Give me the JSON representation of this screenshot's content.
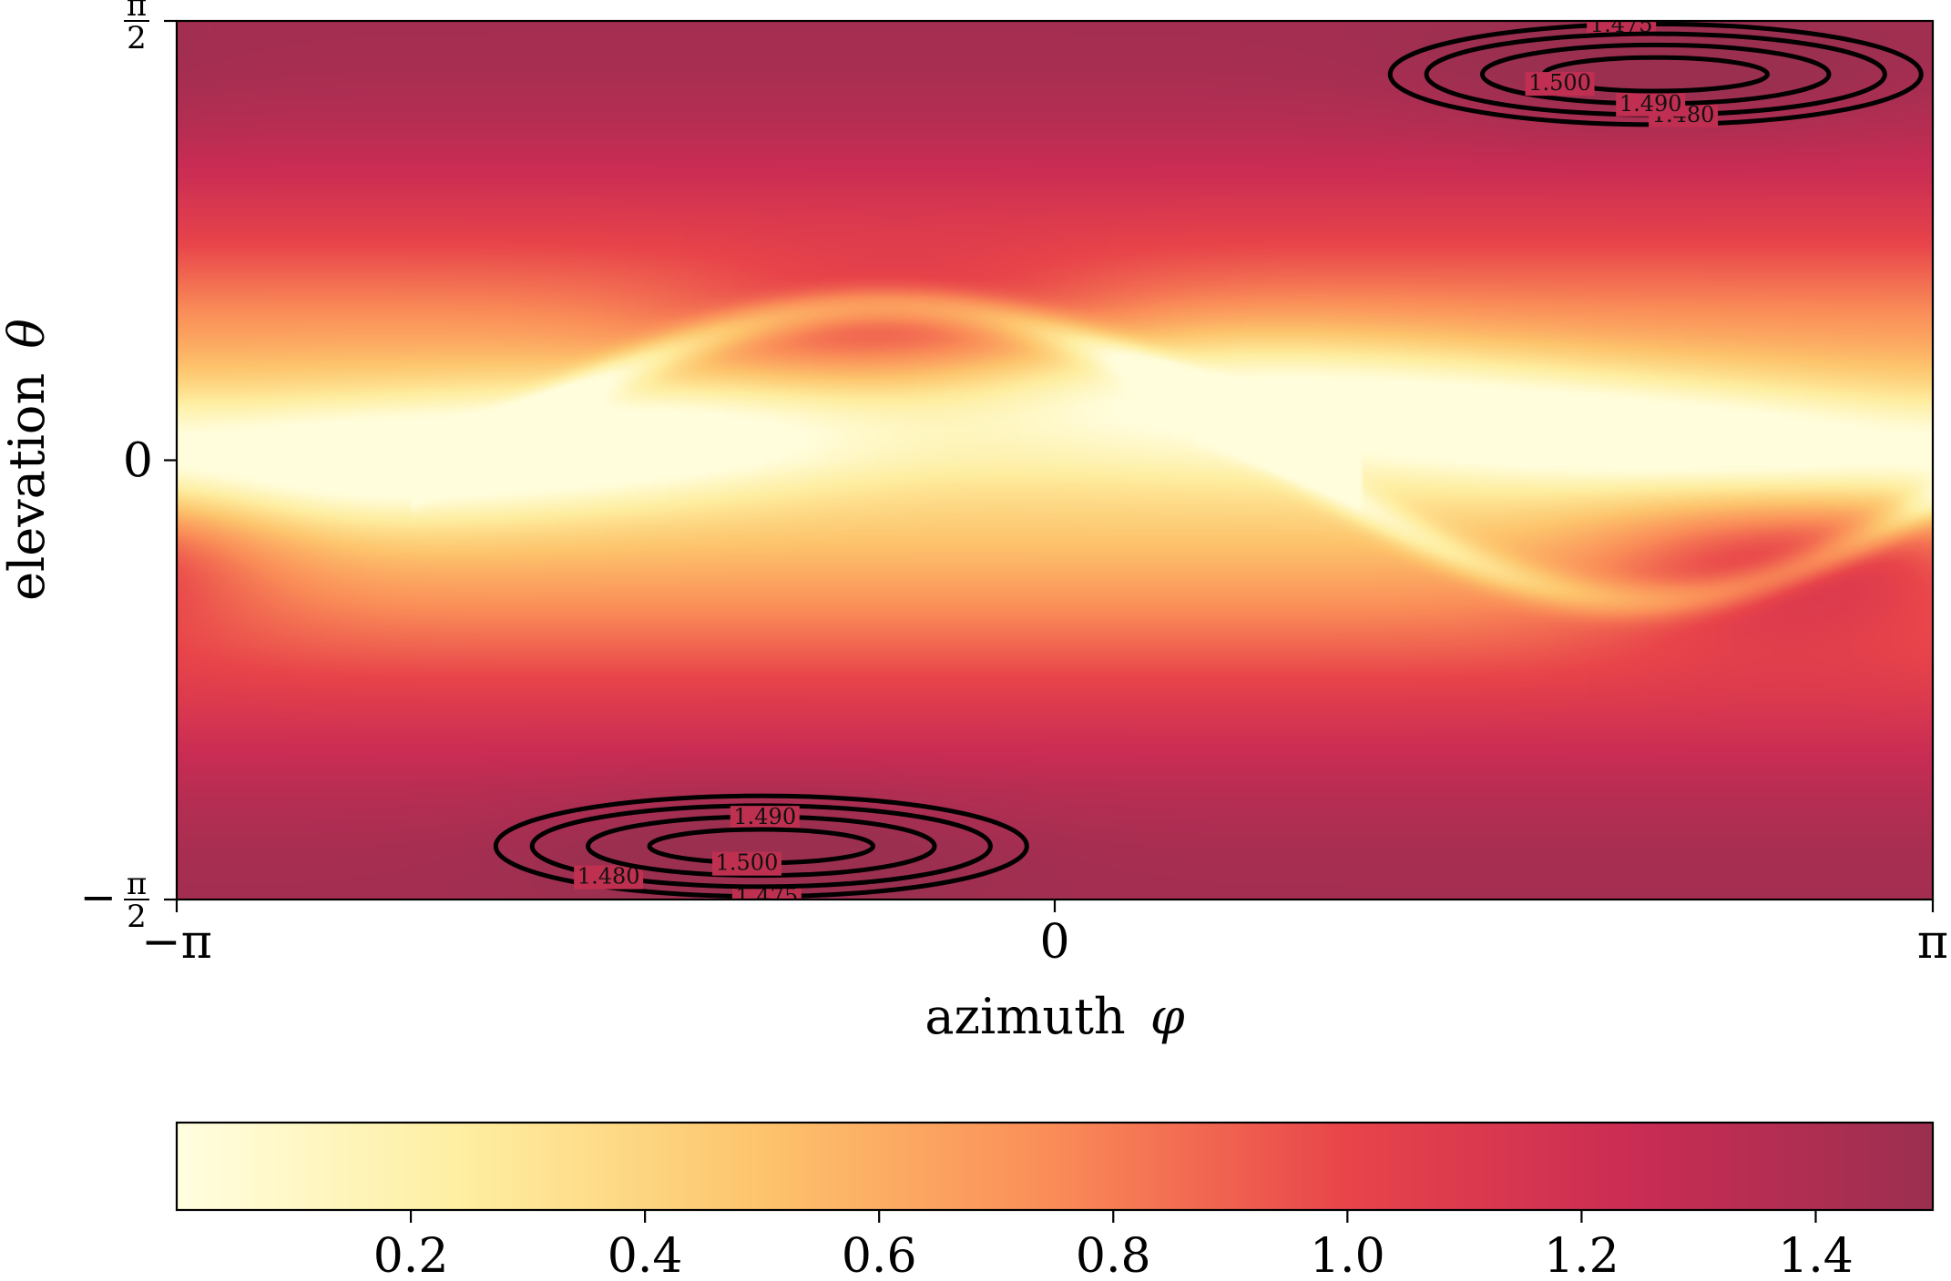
{
  "chart_data": {
    "type": "heatmap",
    "subtype": "heatmap-with-contours",
    "title": "",
    "xlabel": "azimuth",
    "xlabel_symbol": "φ",
    "ylabel": "elevation",
    "ylabel_symbol": "θ",
    "x_range": [
      -3.14159,
      3.14159
    ],
    "y_range": [
      -1.5708,
      1.5708
    ],
    "x_ticks": [
      {
        "value": -3.14159,
        "label": "−π"
      },
      {
        "value": 0,
        "label": "0"
      },
      {
        "value": 3.14159,
        "label": "π"
      }
    ],
    "y_ticks": [
      {
        "value": 1.5708,
        "label_num": "π",
        "label_den": "2",
        "sign": ""
      },
      {
        "value": 0,
        "label_num": "0",
        "label_den": "",
        "sign": ""
      },
      {
        "value": -1.5708,
        "label_num": "π",
        "label_den": "2",
        "sign": "−"
      }
    ],
    "colormap": "YlOrRd-Spectral",
    "colors": [
      "#fffee0",
      "#feeea0",
      "#fdc46c",
      "#fa8c58",
      "#e8444a",
      "#c92c54",
      "#9b2f50"
    ],
    "colorbar": {
      "range": [
        0.0,
        1.5
      ],
      "ticks": [
        0.2,
        0.4,
        0.6,
        0.8,
        1.0,
        1.2,
        1.4
      ],
      "tick_labels": [
        "0.2",
        "0.4",
        "0.6",
        "0.8",
        "1.0",
        "1.2",
        "1.4"
      ],
      "orientation": "horizontal",
      "position": "bottom"
    },
    "contour_levels": [
      1.475,
      1.48,
      1.49,
      1.5
    ],
    "contour_labels": [
      "1.475",
      "1.480",
      "1.490",
      "1.500"
    ],
    "contour_color": "#000000",
    "extrema": {
      "maxima": [
        {
          "phi": 2.15,
          "theta": 1.38,
          "value": 1.5
        },
        {
          "phi": -1.05,
          "theta": -1.38,
          "value": 1.5
        }
      ],
      "minima_ridges": "bright ridge near θ ≈ 0"
    }
  }
}
